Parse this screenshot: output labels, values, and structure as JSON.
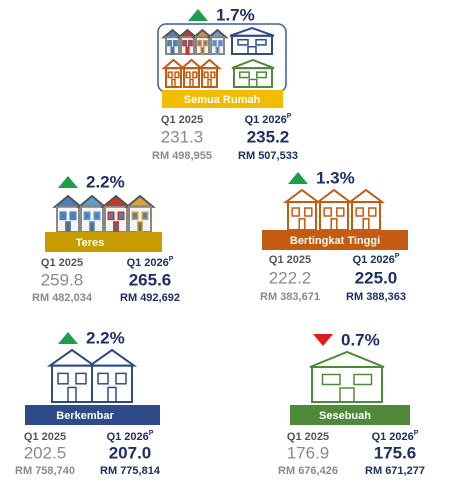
{
  "periods": {
    "base": "Q1 2025",
    "current": "Q1 2026",
    "current_mark": "P"
  },
  "panels": [
    {
      "name": "Semua Rumah",
      "trend": "up",
      "change": "1.7%",
      "color": "#f2bd00",
      "base_index": "231.3",
      "current_index": "235.2",
      "base_price": "RM 498,955",
      "current_price": "RM 507,533"
    },
    {
      "name": "Teres",
      "trend": "up",
      "change": "2.2%",
      "color": "#c69c00",
      "base_index": "259.8",
      "current_index": "265.6",
      "base_price": "RM 482,034",
      "current_price": "RM 492,692"
    },
    {
      "name": "Bertingkat Tinggi",
      "trend": "up",
      "change": "1.3%",
      "color": "#c55a11",
      "base_index": "222.2",
      "current_index": "225.0",
      "base_price": "RM 383,671",
      "current_price": "RM 388,363"
    },
    {
      "name": "Berkembar",
      "trend": "up",
      "change": "2.2%",
      "color": "#2f4b8a",
      "base_index": "202.5",
      "current_index": "207.0",
      "base_price": "RM 758,740",
      "current_price": "RM 775,814"
    },
    {
      "name": "Sesebuah",
      "trend": "down",
      "change": "0.7%",
      "color": "#4f8a3a",
      "base_index": "176.9",
      "current_index": "175.6",
      "base_price": "RM 676,426",
      "current_price": "RM 671,277"
    }
  ]
}
